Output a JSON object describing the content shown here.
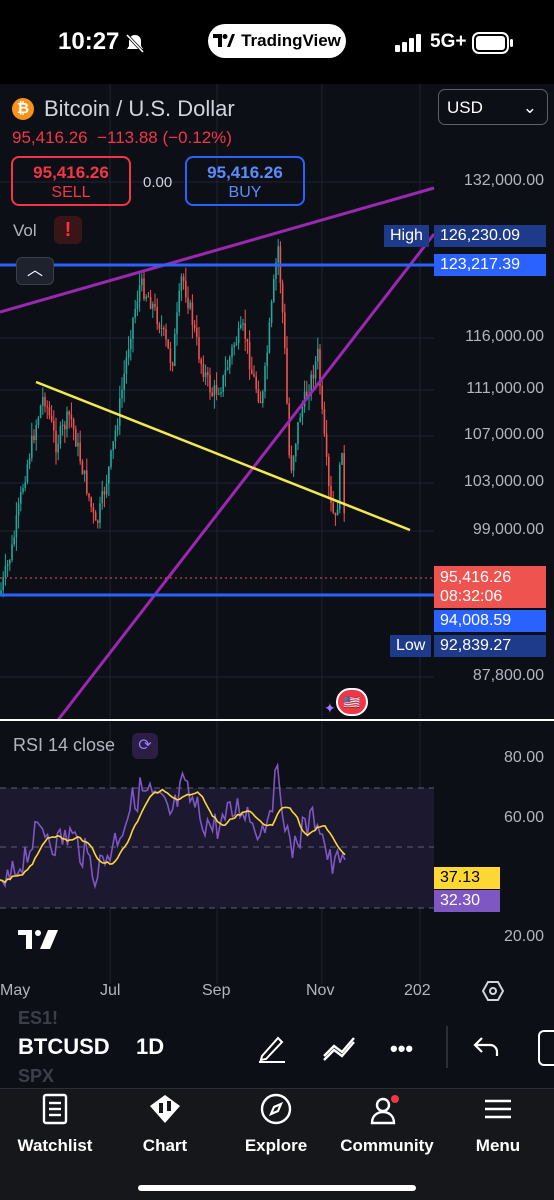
{
  "status": {
    "time": "10:27",
    "app_pill": "TradingView",
    "network": "5G+"
  },
  "header": {
    "symbol_name": "Bitcoin / U.S. Dollar",
    "price": "95,416.26",
    "change": "−113.88 (−0.12%)",
    "sell_price": "95,416.26",
    "sell_label": "SELL",
    "buy_price": "95,416.26",
    "buy_label": "BUY",
    "spread": "0.00",
    "currency": "USD"
  },
  "chart": {
    "vol_label": "Vol",
    "price_axis": [
      "132,000.00",
      "116,000.00",
      "111,000.00",
      "107,000.00",
      "103,000.00",
      "99,000.00",
      "87,800.00"
    ],
    "high_label": "High",
    "high_value": "126,230.09",
    "line_value": "123,217.39",
    "current_price": "95,416.26",
    "countdown": "08:32:06",
    "support_value": "94,008.59",
    "low_label": "Low",
    "low_value": "92,839.27",
    "colors": {
      "up": "#26a69a",
      "down": "#ef5350",
      "trend_purple": "#9c27b0",
      "trend_yellow": "#f2e94e",
      "hline_blue": "#2962ff"
    }
  },
  "rsi": {
    "label": "RSI 14 close",
    "axis": [
      "80.00",
      "60.00",
      "20.00"
    ],
    "ma_value": "37.13",
    "rsi_value": "32.30"
  },
  "time_axis": [
    "May",
    "Jul",
    "Sep",
    "Nov",
    "202"
  ],
  "toolbar": {
    "ticker": "BTCUSD",
    "interval": "1D",
    "ghost_top": "ES1!",
    "ghost_bottom": "SPX",
    "more": "•••"
  },
  "tabs": [
    {
      "label": "Watchlist",
      "icon": "watchlist-icon"
    },
    {
      "label": "Chart",
      "icon": "chart-icon"
    },
    {
      "label": "Explore",
      "icon": "compass-icon"
    },
    {
      "label": "Community",
      "icon": "community-icon"
    },
    {
      "label": "Menu",
      "icon": "menu-icon"
    }
  ]
}
